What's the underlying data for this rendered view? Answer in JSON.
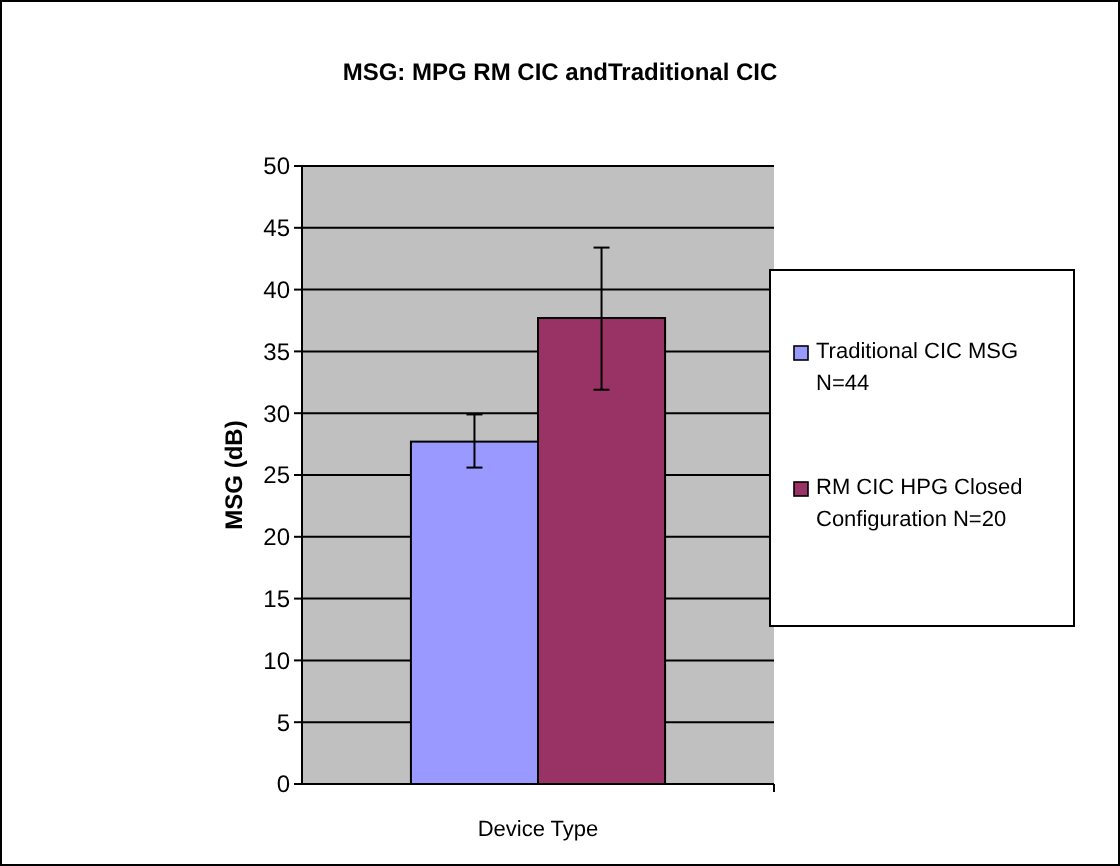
{
  "chart_data": {
    "type": "bar",
    "title": "MSG: MPG RM CIC andTraditional  CIC",
    "xlabel": "Device Type",
    "ylabel": "MSG (dB)",
    "categories": [
      null
    ],
    "series": [
      {
        "name": "Traditional CIC MSG N=44",
        "color": "#9999ff",
        "values": [
          27.7
        ],
        "errors": [
          [
            25.6,
            29.9
          ]
        ]
      },
      {
        "name": "RM CIC HPG Closed Configuration N=20",
        "color": "#993366",
        "values": [
          37.7
        ],
        "errors": [
          [
            31.9,
            43.4
          ]
        ]
      }
    ],
    "ylim": [
      0,
      50
    ],
    "yticks": [
      0,
      5,
      10,
      15,
      20,
      25,
      30,
      35,
      40,
      45,
      50
    ],
    "grid": "y",
    "legend": "right"
  }
}
